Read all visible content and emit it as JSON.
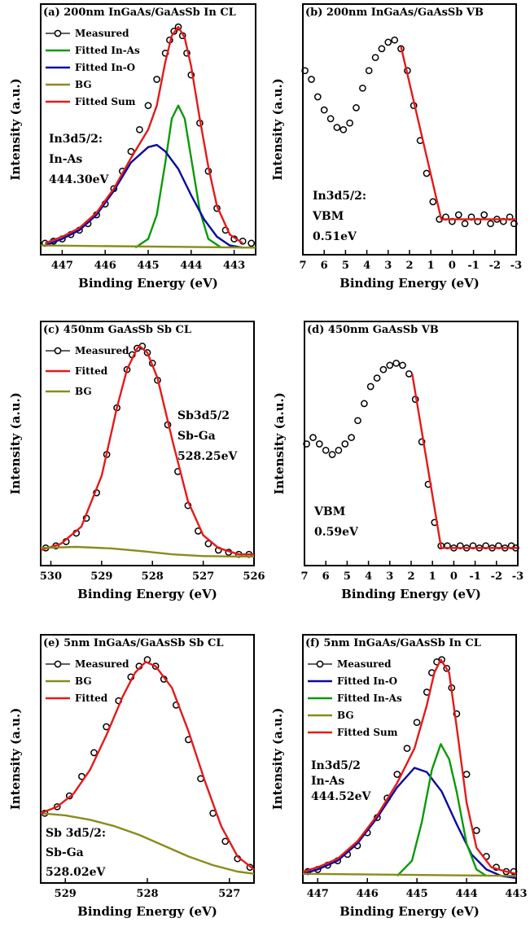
{
  "chart_data": [
    {
      "type": "line",
      "title": "(a) 200nm InGaAs/GaAsSb In CL",
      "xlabel": "Binding Energy (eV)",
      "ylabel": "Intensity (a.u.)",
      "xlim": [
        447.5,
        442.5
      ],
      "xticks": [
        447,
        446,
        445,
        444,
        443
      ],
      "ylim": [
        0,
        1.05
      ],
      "grid": false,
      "legend_position": "top-left",
      "legend": [
        "Measured",
        "Fitted In-As",
        "Fitted In-O",
        "BG",
        "Fitted Sum"
      ],
      "series": [
        {
          "name": "Measured",
          "style": "markers",
          "color": "#000000",
          "x": [
            447.4,
            447.2,
            447.0,
            446.8,
            446.6,
            446.4,
            446.2,
            446.0,
            445.8,
            445.6,
            445.4,
            445.2,
            445.0,
            444.8,
            444.6,
            444.5,
            444.4,
            444.3,
            444.2,
            444.1,
            444.0,
            443.8,
            443.6,
            443.4,
            443.2,
            443.0,
            442.8,
            442.6
          ],
          "y": [
            0.03,
            0.04,
            0.05,
            0.07,
            0.09,
            0.12,
            0.16,
            0.21,
            0.28,
            0.36,
            0.45,
            0.55,
            0.66,
            0.78,
            0.9,
            0.96,
            1.0,
            1.02,
            0.98,
            0.9,
            0.8,
            0.58,
            0.36,
            0.19,
            0.09,
            0.05,
            0.04,
            0.03
          ]
        },
        {
          "name": "Fitted In-As",
          "style": "line",
          "color": "#0a9a0a",
          "x": [
            445.3,
            445.0,
            444.8,
            444.6,
            444.45,
            444.3,
            444.15,
            444.0,
            443.8,
            443.6,
            443.3
          ],
          "y": [
            0.01,
            0.05,
            0.16,
            0.4,
            0.6,
            0.66,
            0.6,
            0.42,
            0.18,
            0.05,
            0.01
          ]
        },
        {
          "name": "Fitted In-O",
          "style": "line",
          "color": "#0a0aa0",
          "x": [
            447.4,
            447.0,
            446.6,
            446.2,
            445.8,
            445.4,
            445.0,
            444.8,
            444.6,
            444.3,
            444.0,
            443.7,
            443.4,
            443.1,
            442.8
          ],
          "y": [
            0.02,
            0.05,
            0.09,
            0.16,
            0.27,
            0.4,
            0.47,
            0.48,
            0.45,
            0.37,
            0.25,
            0.14,
            0.06,
            0.02,
            0.01
          ]
        },
        {
          "name": "BG",
          "style": "line",
          "color": "#8b8b1a",
          "x": [
            447.5,
            442.5
          ],
          "y": [
            0.02,
            0.01
          ]
        },
        {
          "name": "Fitted Sum",
          "style": "line",
          "color": "#e41a1a",
          "x": [
            447.4,
            447.0,
            446.6,
            446.2,
            445.8,
            445.4,
            445.0,
            444.8,
            444.6,
            444.45,
            444.3,
            444.15,
            444.0,
            443.8,
            443.6,
            443.4,
            443.1,
            442.8
          ],
          "y": [
            0.03,
            0.06,
            0.1,
            0.17,
            0.28,
            0.42,
            0.55,
            0.66,
            0.86,
            0.98,
            1.02,
            0.97,
            0.84,
            0.6,
            0.38,
            0.2,
            0.07,
            0.03
          ]
        }
      ],
      "annotation": [
        "In3d5/2:",
        "In-As",
        "444.30eV"
      ]
    },
    {
      "type": "line",
      "title": "(b) 200nm InGaAs/GaAsSb VB",
      "xlabel": "Binding Energy (eV)",
      "ylabel": "Intensity (a.u.)",
      "xlim": [
        7,
        -3
      ],
      "xticks": [
        7,
        6,
        5,
        4,
        3,
        2,
        1,
        0,
        -1,
        -2,
        -3
      ],
      "ylim": [
        0,
        1.05
      ],
      "grid": false,
      "series": [
        {
          "name": "Measured",
          "style": "markers",
          "color": "#000000",
          "x": [
            6.9,
            6.6,
            6.3,
            6.0,
            5.7,
            5.4,
            5.1,
            4.8,
            4.5,
            4.2,
            3.9,
            3.6,
            3.3,
            3.0,
            2.7,
            2.4,
            2.1,
            1.8,
            1.5,
            1.2,
            0.9,
            0.6,
            0.3,
            0.0,
            -0.3,
            -0.6,
            -0.9,
            -1.2,
            -1.5,
            -1.8,
            -2.1,
            -2.4,
            -2.7,
            -2.9
          ],
          "y": [
            0.82,
            0.78,
            0.7,
            0.64,
            0.6,
            0.56,
            0.55,
            0.58,
            0.65,
            0.74,
            0.82,
            0.88,
            0.92,
            0.95,
            0.96,
            0.92,
            0.82,
            0.66,
            0.5,
            0.35,
            0.22,
            0.14,
            0.15,
            0.13,
            0.16,
            0.12,
            0.15,
            0.13,
            0.16,
            0.12,
            0.14,
            0.13,
            0.15,
            0.12
          ]
        },
        {
          "name": "Fitted",
          "style": "line",
          "color": "#e41a1a",
          "x": [
            2.4,
            0.51,
            -3
          ],
          "y": [
            0.93,
            0.14,
            0.14
          ]
        }
      ],
      "annotation": [
        "In3d5/2:",
        "VBM",
        "0.51eV"
      ]
    },
    {
      "type": "line",
      "title": "(c) 450nm GaAsSb Sb CL",
      "xlabel": "Binding Energy (eV)",
      "ylabel": "Intensity (a.u.)",
      "xlim": [
        530.2,
        526
      ],
      "xticks": [
        530,
        529,
        528,
        527,
        526
      ],
      "ylim": [
        0,
        1.05
      ],
      "grid": false,
      "legend_position": "top-left",
      "legend": [
        "Measured",
        "Fitted",
        "BG"
      ],
      "series": [
        {
          "name": "Measured",
          "style": "markers",
          "color": "#000000",
          "x": [
            530.1,
            529.9,
            529.7,
            529.5,
            529.3,
            529.1,
            528.9,
            528.7,
            528.5,
            528.4,
            528.3,
            528.2,
            528.1,
            528.0,
            527.9,
            527.7,
            527.5,
            527.3,
            527.1,
            526.9,
            526.7,
            526.5,
            526.3,
            526.1
          ],
          "y": [
            0.06,
            0.07,
            0.09,
            0.13,
            0.2,
            0.32,
            0.5,
            0.72,
            0.9,
            0.97,
            1.0,
            1.01,
            0.98,
            0.93,
            0.85,
            0.64,
            0.42,
            0.26,
            0.14,
            0.08,
            0.05,
            0.04,
            0.03,
            0.03
          ]
        },
        {
          "name": "Fitted",
          "style": "line",
          "color": "#e41a1a",
          "x": [
            530.2,
            529.8,
            529.4,
            529.0,
            528.7,
            528.5,
            528.3,
            528.25,
            528.1,
            527.9,
            527.6,
            527.3,
            527.0,
            526.7,
            526.3,
            526.0
          ],
          "y": [
            0.05,
            0.08,
            0.16,
            0.4,
            0.72,
            0.9,
            1.0,
            1.01,
            0.98,
            0.86,
            0.56,
            0.28,
            0.12,
            0.06,
            0.03,
            0.03
          ]
        },
        {
          "name": "BG",
          "style": "line",
          "color": "#8b8b1a",
          "x": [
            530.2,
            529.5,
            528.8,
            528.2,
            527.6,
            527.0,
            526.4,
            526.0
          ],
          "y": [
            0.06,
            0.065,
            0.058,
            0.045,
            0.03,
            0.022,
            0.02,
            0.02
          ]
        }
      ],
      "annotation": [
        "Sb3d5/2",
        "Sb-Ga",
        "528.25eV"
      ]
    },
    {
      "type": "line",
      "title": "(d) 450nm GaAsSb VB",
      "xlabel": "Binding Energy (eV)",
      "ylabel": "Intensity (a.u.)",
      "xlim": [
        7,
        -3
      ],
      "xticks": [
        7,
        6,
        5,
        4,
        3,
        2,
        1,
        0,
        -1,
        -2,
        -3
      ],
      "ylim": [
        0,
        1.05
      ],
      "grid": false,
      "series": [
        {
          "name": "Measured",
          "style": "markers",
          "color": "#000000",
          "x": [
            6.9,
            6.6,
            6.3,
            6.0,
            5.7,
            5.4,
            5.1,
            4.8,
            4.5,
            4.2,
            3.9,
            3.6,
            3.3,
            3.0,
            2.7,
            2.4,
            2.1,
            1.8,
            1.5,
            1.2,
            0.9,
            0.6,
            0.3,
            0.0,
            -0.3,
            -0.6,
            -0.9,
            -1.2,
            -1.5,
            -1.8,
            -2.1,
            -2.4,
            -2.7,
            -2.9
          ],
          "y": [
            0.55,
            0.58,
            0.55,
            0.52,
            0.5,
            0.52,
            0.55,
            0.58,
            0.66,
            0.74,
            0.82,
            0.86,
            0.9,
            0.92,
            0.93,
            0.92,
            0.88,
            0.76,
            0.56,
            0.36,
            0.18,
            0.07,
            0.07,
            0.06,
            0.07,
            0.06,
            0.07,
            0.06,
            0.07,
            0.06,
            0.07,
            0.06,
            0.07,
            0.06
          ]
        },
        {
          "name": "Fitted",
          "style": "line",
          "color": "#e41a1a",
          "x": [
            1.95,
            0.59,
            -3
          ],
          "y": [
            0.88,
            0.06,
            0.06
          ]
        }
      ],
      "annotation": [
        "VBM",
        "0.59eV"
      ]
    },
    {
      "type": "line",
      "title": "(e) 5nm InGaAs/GaAsSb Sb CL",
      "xlabel": "Binding Energy (eV)",
      "ylabel": "Intensity (a.u.)",
      "xlim": [
        529.3,
        526.7
      ],
      "xticks": [
        529,
        528,
        527
      ],
      "ylim": [
        0,
        1.05
      ],
      "grid": false,
      "legend_position": "top-left",
      "legend": [
        "Measured",
        "BG",
        "Fitted"
      ],
      "series": [
        {
          "name": "Measured",
          "style": "markers",
          "color": "#000000",
          "x": [
            529.25,
            529.1,
            528.95,
            528.8,
            528.65,
            528.5,
            528.35,
            528.2,
            528.1,
            528.0,
            527.9,
            527.8,
            527.65,
            527.5,
            527.35,
            527.2,
            527.05,
            526.9,
            526.75
          ],
          "y": [
            0.3,
            0.33,
            0.38,
            0.47,
            0.58,
            0.7,
            0.82,
            0.93,
            0.98,
            1.01,
            0.98,
            0.92,
            0.8,
            0.64,
            0.46,
            0.3,
            0.17,
            0.09,
            0.05
          ]
        },
        {
          "name": "BG",
          "style": "line",
          "color": "#8b8b1a",
          "x": [
            529.3,
            529.0,
            528.7,
            528.4,
            528.1,
            527.8,
            527.5,
            527.2,
            526.9,
            526.7
          ],
          "y": [
            0.3,
            0.29,
            0.27,
            0.24,
            0.2,
            0.15,
            0.1,
            0.06,
            0.03,
            0.02
          ]
        },
        {
          "name": "Fitted",
          "style": "line",
          "color": "#e41a1a",
          "x": [
            529.3,
            529.1,
            528.9,
            528.7,
            528.5,
            528.3,
            528.15,
            528.02,
            527.9,
            527.7,
            527.5,
            527.3,
            527.1,
            526.9,
            526.7
          ],
          "y": [
            0.3,
            0.33,
            0.39,
            0.5,
            0.66,
            0.84,
            0.95,
            1.0,
            0.98,
            0.88,
            0.68,
            0.45,
            0.24,
            0.1,
            0.04
          ]
        }
      ],
      "annotation": [
        "Sb 3d5/2:",
        "Sb-Ga",
        "528.02eV"
      ]
    },
    {
      "type": "line",
      "title": "(f) 5nm InGaAs/GaAsSb In CL",
      "xlabel": "Binding Energy (eV)",
      "ylabel": "Intensity (a.u.)",
      "xlim": [
        447.3,
        443
      ],
      "xticks": [
        447,
        446,
        445,
        444,
        443
      ],
      "ylim": [
        0,
        1.05
      ],
      "grid": false,
      "legend_position": "top-left",
      "legend": [
        "Measured",
        "Fitted In-O",
        "Fitted In-As",
        "BG",
        "Fitted Sum"
      ],
      "series": [
        {
          "name": "Measured",
          "style": "markers",
          "color": "#000000",
          "x": [
            447.2,
            447.0,
            446.8,
            446.6,
            446.4,
            446.2,
            446.0,
            445.8,
            445.6,
            445.4,
            445.2,
            445.0,
            444.8,
            444.7,
            444.6,
            444.5,
            444.4,
            444.3,
            444.2,
            444.0,
            443.8,
            443.6,
            443.4,
            443.2,
            443.05
          ],
          "y": [
            0.03,
            0.04,
            0.06,
            0.08,
            0.11,
            0.15,
            0.21,
            0.28,
            0.37,
            0.48,
            0.6,
            0.72,
            0.86,
            0.95,
            1.0,
            1.01,
            0.97,
            0.88,
            0.76,
            0.48,
            0.22,
            0.1,
            0.05,
            0.03,
            0.03
          ]
        },
        {
          "name": "Fitted In-O",
          "style": "line",
          "color": "#0a0aa0",
          "x": [
            447.3,
            447.0,
            446.6,
            446.2,
            445.8,
            445.4,
            445.05,
            444.8,
            444.5,
            444.2,
            443.9,
            443.6,
            443.3,
            443.0
          ],
          "y": [
            0.02,
            0.04,
            0.08,
            0.16,
            0.28,
            0.42,
            0.51,
            0.49,
            0.4,
            0.25,
            0.11,
            0.04,
            0.01,
            0.0
          ]
        },
        {
          "name": "Fitted In-As",
          "style": "line",
          "color": "#0a9a0a",
          "x": [
            445.4,
            445.1,
            444.9,
            444.7,
            444.52,
            444.35,
            444.2,
            444.0,
            443.8,
            443.6
          ],
          "y": [
            0.01,
            0.08,
            0.26,
            0.5,
            0.62,
            0.55,
            0.4,
            0.16,
            0.04,
            0.01
          ]
        },
        {
          "name": "BG",
          "style": "line",
          "color": "#8b8b1a",
          "x": [
            447.3,
            443.0
          ],
          "y": [
            0.02,
            0.01
          ]
        },
        {
          "name": "Fitted Sum",
          "style": "line",
          "color": "#e41a1a",
          "x": [
            447.3,
            447.0,
            446.6,
            446.2,
            445.8,
            445.4,
            445.05,
            444.8,
            444.65,
            444.52,
            444.35,
            444.2,
            444.0,
            443.8,
            443.5,
            443.2,
            443.0
          ],
          "y": [
            0.03,
            0.05,
            0.09,
            0.17,
            0.29,
            0.44,
            0.6,
            0.8,
            0.95,
            1.01,
            0.95,
            0.7,
            0.35,
            0.14,
            0.05,
            0.03,
            0.02
          ]
        }
      ],
      "annotation": [
        "In3d5/2",
        "In-As",
        "444.52eV"
      ]
    }
  ]
}
